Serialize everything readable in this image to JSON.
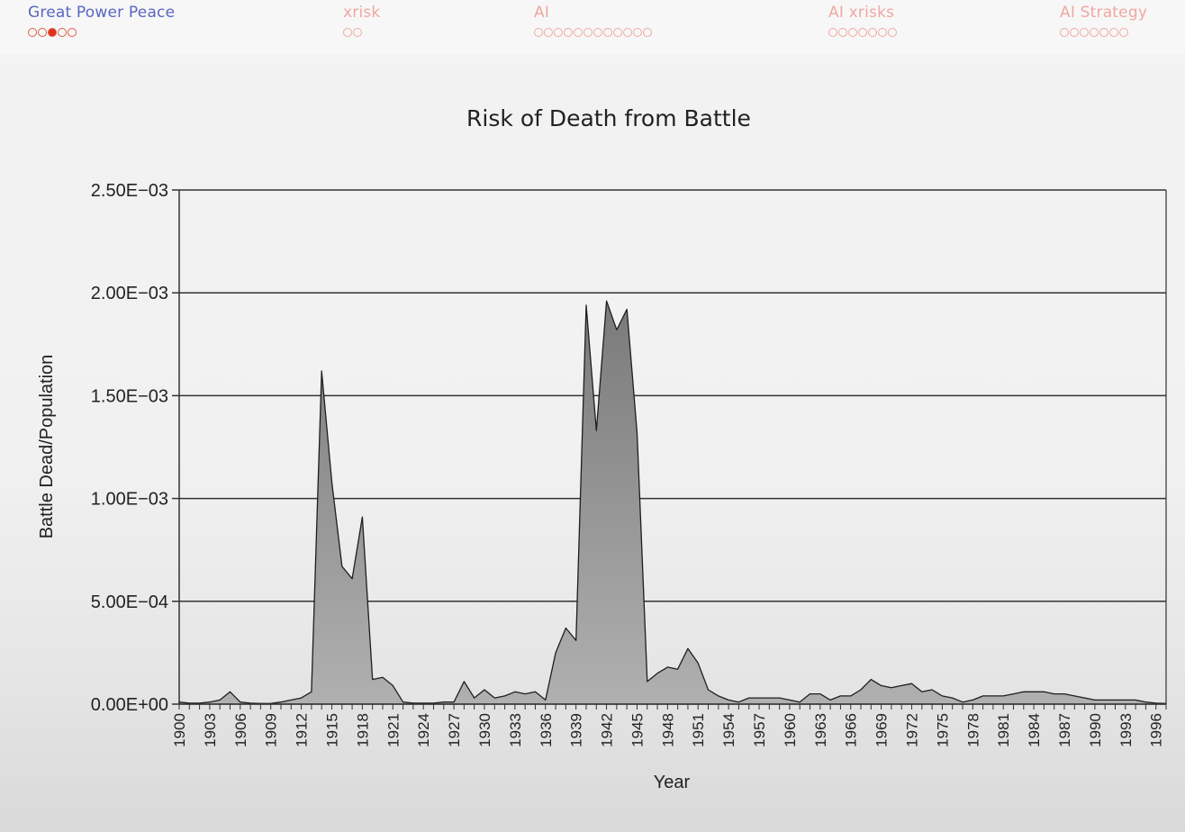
{
  "nav": {
    "sections": [
      {
        "title": "Great Power Peace",
        "dots": 5,
        "current": 2,
        "active": true
      },
      {
        "title": "xrisk",
        "dots": 2,
        "current": -1,
        "active": false
      },
      {
        "title": "AI",
        "dots": 12,
        "current": -1,
        "active": false
      },
      {
        "title": "AI xrisks",
        "dots": 7,
        "current": -1,
        "active": false
      },
      {
        "title": "AI Strategy",
        "dots": 7,
        "current": -1,
        "active": false
      }
    ]
  },
  "chart_data": {
    "type": "area",
    "title": "Risk of Death from Battle",
    "xlabel": "Year",
    "ylabel": "Battle Dead/Population",
    "ylim": [
      0,
      0.0025
    ],
    "yticks": [
      0,
      0.0005,
      0.001,
      0.0015,
      0.002,
      0.0025
    ],
    "ytick_labels": [
      "0.00E+00",
      "5.00E−04",
      "1.00E−03",
      "1.50E−03",
      "2.00E−03",
      "2.50E−03"
    ],
    "xtick_labels": [
      "1900",
      "1903",
      "1906",
      "1909",
      "1912",
      "1915",
      "1918",
      "1921",
      "1924",
      "1927",
      "1930",
      "1933",
      "1936",
      "1939",
      "1942",
      "1945",
      "1948",
      "1951",
      "1954",
      "1957",
      "1960",
      "1963",
      "1966",
      "1969",
      "1972",
      "1975",
      "1978",
      "1981",
      "1984",
      "1987",
      "1990",
      "1993",
      "1996"
    ],
    "grid": true,
    "fill_color": "#9a9a9a",
    "x": [
      1900,
      1901,
      1902,
      1903,
      1904,
      1905,
      1906,
      1907,
      1908,
      1909,
      1910,
      1911,
      1912,
      1913,
      1914,
      1915,
      1916,
      1917,
      1918,
      1919,
      1920,
      1921,
      1922,
      1923,
      1924,
      1925,
      1926,
      1927,
      1928,
      1929,
      1930,
      1931,
      1932,
      1933,
      1934,
      1935,
      1936,
      1937,
      1938,
      1939,
      1940,
      1941,
      1942,
      1943,
      1944,
      1945,
      1946,
      1947,
      1948,
      1949,
      1950,
      1951,
      1952,
      1953,
      1954,
      1955,
      1956,
      1957,
      1958,
      1959,
      1960,
      1961,
      1962,
      1963,
      1964,
      1965,
      1966,
      1967,
      1968,
      1969,
      1970,
      1971,
      1972,
      1973,
      1974,
      1975,
      1976,
      1977,
      1978,
      1979,
      1980,
      1981,
      1982,
      1983,
      1984,
      1985,
      1986,
      1987,
      1988,
      1989,
      1990,
      1991,
      1992,
      1993,
      1994,
      1995,
      1996,
      1997
    ],
    "values": [
      1e-05,
      5e-06,
      5e-06,
      1e-05,
      2e-05,
      6e-05,
      1e-05,
      5e-06,
      3e-06,
      3e-06,
      1e-05,
      2e-05,
      3e-05,
      6e-05,
      0.00162,
      0.00108,
      0.00067,
      0.00061,
      0.00091,
      0.00012,
      0.00013,
      9e-05,
      1e-05,
      5e-06,
      5e-06,
      5e-06,
      1e-05,
      1e-05,
      0.00011,
      3e-05,
      7e-05,
      3e-05,
      4e-05,
      6e-05,
      5e-05,
      6e-05,
      2e-05,
      0.00025,
      0.00037,
      0.00031,
      0.00194,
      0.00133,
      0.00196,
      0.00182,
      0.00192,
      0.00132,
      0.00011,
      0.00015,
      0.00018,
      0.00017,
      0.00027,
      0.0002,
      7e-05,
      4e-05,
      2e-05,
      1e-05,
      3e-05,
      3e-05,
      3e-05,
      3e-05,
      2e-05,
      1e-05,
      5e-05,
      5e-05,
      2e-05,
      4e-05,
      4e-05,
      7e-05,
      0.00012,
      9e-05,
      8e-05,
      9e-05,
      0.0001,
      6e-05,
      7e-05,
      4e-05,
      3e-05,
      1e-05,
      2e-05,
      4e-05,
      4e-05,
      4e-05,
      5e-05,
      6e-05,
      6e-05,
      6e-05,
      5e-05,
      5e-05,
      4e-05,
      3e-05,
      2e-05,
      2e-05,
      2e-05,
      2e-05,
      2e-05,
      1e-05,
      5e-06,
      3e-06
    ]
  }
}
